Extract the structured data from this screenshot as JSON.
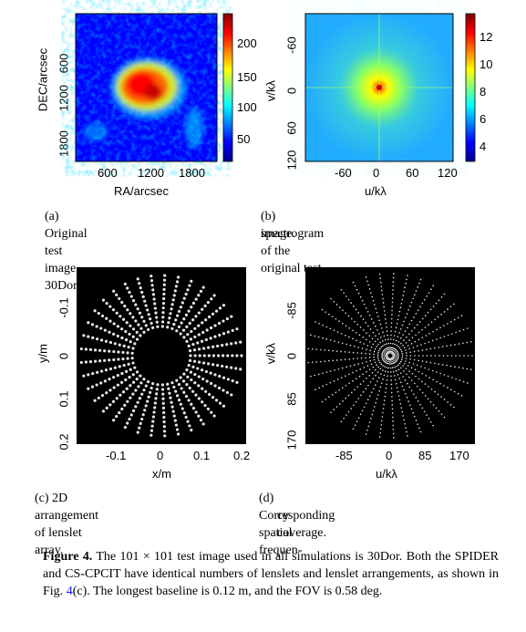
{
  "panels": [
    {
      "id": "a",
      "caption": "(a)  Original test image, 30Dor.",
      "xlabel": "RA/arcsec",
      "ylabel": "DEC/arcsec",
      "xticks": [
        "600",
        "1200",
        "1800"
      ],
      "yticks": [
        "600",
        "1200",
        "1800"
      ],
      "colorbar_ticks": [
        "200",
        "150",
        "100",
        "50"
      ]
    },
    {
      "id": "b",
      "caption_line1": "(b)  spectrogram of the original test",
      "caption_line2": "image.",
      "xlabel": "u/kλ",
      "ylabel": "v/kλ",
      "xticks": [
        "-60",
        "0",
        "60",
        "120"
      ],
      "yticks": [
        "-60",
        "0",
        "60",
        "120"
      ],
      "colorbar_ticks": [
        "12",
        "10",
        "8",
        "6",
        "4"
      ]
    },
    {
      "id": "c",
      "caption": "(c)  2D arrangement of lenslet array.",
      "xlabel": "x/m",
      "ylabel": "y/m",
      "xticks": [
        "-0.1",
        "0",
        "0.1",
        "0.2"
      ],
      "yticks": [
        "-0.1",
        "0",
        "0.1",
        "0.2"
      ]
    },
    {
      "id": "d",
      "caption_line1": "(d)  Corresponding spatial frequen-",
      "caption_line2": "cy coverage.",
      "xlabel": "u/kλ",
      "ylabel": "v/kλ",
      "xticks": [
        "-85",
        "0",
        "85",
        "170"
      ],
      "yticks": [
        "-85",
        "0",
        "85",
        "170"
      ]
    }
  ],
  "figure_caption": {
    "label": "Figure 4.",
    "text_1": "  The 101 × 101 test image used in all simulations is 30Dor. Both the SPIDER and CS-CPCIT have identical numbers of lenslets and lenslet arrangements, as shown in Fig. ",
    "ref": "4",
    "text_2": "(c). The longest baseline is 0.12 m, and the FOV is 0.58 deg."
  },
  "colors": {
    "colormap": [
      "#00008f",
      "#0000ff",
      "#00ffff",
      "#ffff00",
      "#ff0000",
      "#800000"
    ],
    "link": "#1a1aff",
    "dots": "#e6e6e6"
  },
  "array_layout": {
    "arms": 37,
    "lenslets_per_arm": 12
  }
}
